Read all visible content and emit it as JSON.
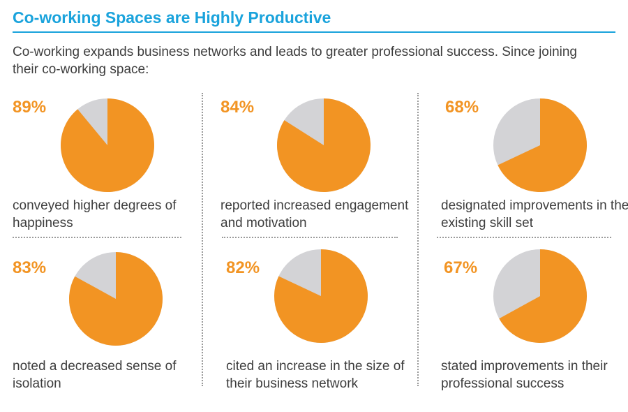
{
  "header": {
    "title": "Co-working Spaces are Highly Productive",
    "subtitle": "Co-working expands business networks and leads to greater professional success. Since joining their co-working space:"
  },
  "colors": {
    "accent": "#1aa3dc",
    "highlight": "#f29423",
    "remainder": "#d3d3d6",
    "text": "#3d3d3d"
  },
  "chart_data": [
    {
      "type": "pie",
      "label": "89%",
      "value": 89,
      "caption": "conveyed higher degrees of happiness"
    },
    {
      "type": "pie",
      "label": "84%",
      "value": 84,
      "caption": "reported increased engagement and motivation"
    },
    {
      "type": "pie",
      "label": "68%",
      "value": 68,
      "caption": "designated improvements in their existing skill set"
    },
    {
      "type": "pie",
      "label": "83%",
      "value": 83,
      "caption": "noted a decreased sense of isolation"
    },
    {
      "type": "pie",
      "label": "82%",
      "value": 82,
      "caption": "cited an increase in the size of their business network"
    },
    {
      "type": "pie",
      "label": "67%",
      "value": 67,
      "caption": "stated improvements in their professional success"
    }
  ]
}
